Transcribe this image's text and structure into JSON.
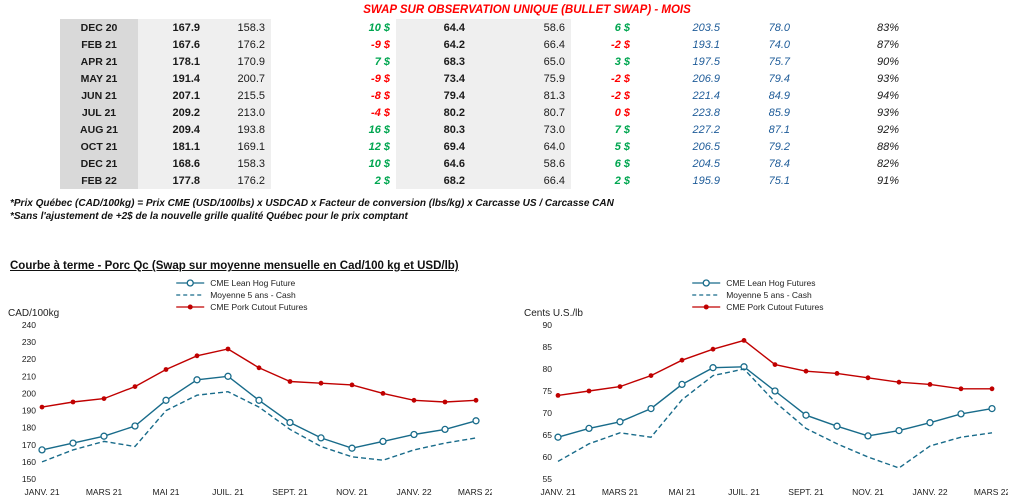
{
  "title": "SWAP SUR OBSERVATION UNIQUE (BULLET SWAP) - MOIS",
  "colors": {
    "title-red": "#ff0000",
    "diff-green": "#00a650",
    "diff-red": "#ff0000",
    "table-blue": "#1f5c99"
  },
  "table": {
    "rows": [
      {
        "month": "DEC 20",
        "cad": "167.9",
        "cad_ref": "158.3",
        "cad_diff": "10 $",
        "cad_diff_color": "green",
        "usd": "64.4",
        "usd_ref": "58.6",
        "usd_diff": "6 $",
        "usd_diff_color": "green",
        "cutout_cad": "203.5",
        "cutout_usd": "78.0",
        "ratio": "83%"
      },
      {
        "month": "FEB 21",
        "cad": "167.6",
        "cad_ref": "176.2",
        "cad_diff": "-9 $",
        "cad_diff_color": "red",
        "usd": "64.2",
        "usd_ref": "66.4",
        "usd_diff": "-2 $",
        "usd_diff_color": "red",
        "cutout_cad": "193.1",
        "cutout_usd": "74.0",
        "ratio": "87%"
      },
      {
        "month": "APR 21",
        "cad": "178.1",
        "cad_ref": "170.9",
        "cad_diff": "7 $",
        "cad_diff_color": "green",
        "usd": "68.3",
        "usd_ref": "65.0",
        "usd_diff": "3 $",
        "usd_diff_color": "green",
        "cutout_cad": "197.5",
        "cutout_usd": "75.7",
        "ratio": "90%"
      },
      {
        "month": "MAY 21",
        "cad": "191.4",
        "cad_ref": "200.7",
        "cad_diff": "-9 $",
        "cad_diff_color": "red",
        "usd": "73.4",
        "usd_ref": "75.9",
        "usd_diff": "-2 $",
        "usd_diff_color": "red",
        "cutout_cad": "206.9",
        "cutout_usd": "79.4",
        "ratio": "93%"
      },
      {
        "month": "JUN 21",
        "cad": "207.1",
        "cad_ref": "215.5",
        "cad_diff": "-8 $",
        "cad_diff_color": "red",
        "usd": "79.4",
        "usd_ref": "81.3",
        "usd_diff": "-2 $",
        "usd_diff_color": "red",
        "cutout_cad": "221.4",
        "cutout_usd": "84.9",
        "ratio": "94%"
      },
      {
        "month": "JUL 21",
        "cad": "209.2",
        "cad_ref": "213.0",
        "cad_diff": "-4 $",
        "cad_diff_color": "red",
        "usd": "80.2",
        "usd_ref": "80.7",
        "usd_diff": "0 $",
        "usd_diff_color": "red",
        "cutout_cad": "223.8",
        "cutout_usd": "85.9",
        "ratio": "93%"
      },
      {
        "month": "AUG 21",
        "cad": "209.4",
        "cad_ref": "193.8",
        "cad_diff": "16 $",
        "cad_diff_color": "green",
        "usd": "80.3",
        "usd_ref": "73.0",
        "usd_diff": "7 $",
        "usd_diff_color": "green",
        "cutout_cad": "227.2",
        "cutout_usd": "87.1",
        "ratio": "92%"
      },
      {
        "month": "OCT 21",
        "cad": "181.1",
        "cad_ref": "169.1",
        "cad_diff": "12 $",
        "cad_diff_color": "green",
        "usd": "69.4",
        "usd_ref": "64.0",
        "usd_diff": "5 $",
        "usd_diff_color": "green",
        "cutout_cad": "206.5",
        "cutout_usd": "79.2",
        "ratio": "88%"
      },
      {
        "month": "DEC 21",
        "cad": "168.6",
        "cad_ref": "158.3",
        "cad_diff": "10 $",
        "cad_diff_color": "green",
        "usd": "64.6",
        "usd_ref": "58.6",
        "usd_diff": "6 $",
        "usd_diff_color": "green",
        "cutout_cad": "204.5",
        "cutout_usd": "78.4",
        "ratio": "82%"
      },
      {
        "month": "FEB 22",
        "cad": "177.8",
        "cad_ref": "176.2",
        "cad_diff": "2 $",
        "cad_diff_color": "green",
        "usd": "68.2",
        "usd_ref": "66.4",
        "usd_diff": "2 $",
        "usd_diff_color": "green",
        "cutout_cad": "195.9",
        "cutout_usd": "75.1",
        "ratio": "91%"
      }
    ]
  },
  "footnotes": [
    "*Prix Québec (CAD/100kg) = Prix CME (USD/100lbs) x USDCAD x Facteur de conversion (lbs/kg) x Carcasse US / Carcasse CAN",
    "*Sans l'ajustement de +2$ de la nouvelle grille qualité Québec pour le prix comptant"
  ],
  "section_title": "Courbe à terme - Porc Qc (Swap sur moyenne mensuelle en Cad/100 kg et USD/lb)",
  "chart_data": [
    {
      "type": "line",
      "title": "",
      "ylabel": "CAD/100kg",
      "xlabel": "",
      "ylim": [
        150,
        240
      ],
      "ytick_step": 10,
      "grid": false,
      "legend_position": "top",
      "x_label_indices": [
        0,
        2,
        4,
        6,
        8,
        10,
        12,
        14
      ],
      "x_labels_shown": [
        "JANV. 21",
        "MARS 21",
        "MAI 21",
        "JUIL. 21",
        "SEPT. 21",
        "NOV. 21",
        "JANV. 22",
        "MARS 22"
      ],
      "series": [
        {
          "name": "CME Lean Hog Future",
          "color": "#186b8a",
          "line": "solid",
          "marker": "open-circle",
          "values": [
            167,
            171,
            175,
            181,
            196,
            208,
            210,
            196,
            183,
            174,
            168,
            172,
            176,
            179,
            184
          ]
        },
        {
          "name": "Moyenne 5 ans - Cash",
          "color": "#186b8a",
          "line": "dashed",
          "marker": "none",
          "values": [
            160,
            167,
            172,
            169,
            190,
            199,
            201,
            192,
            179,
            169,
            163,
            161,
            167,
            171,
            174
          ]
        },
        {
          "name": "CME Pork Cutout Futures",
          "color": "#c00000",
          "line": "solid",
          "marker": "filled-circle",
          "values": [
            192,
            195,
            197,
            204,
            214,
            222,
            226,
            215,
            207,
            206,
            205,
            200,
            196,
            195,
            196
          ]
        }
      ]
    },
    {
      "type": "line",
      "title": "",
      "ylabel": "Cents U.S./lb",
      "xlabel": "",
      "ylim": [
        55,
        90
      ],
      "ytick_step": 5,
      "grid": false,
      "legend_position": "top",
      "x_label_indices": [
        0,
        2,
        4,
        6,
        8,
        10,
        12,
        14
      ],
      "x_labels_shown": [
        "JANV. 21",
        "MARS 21",
        "MAI 21",
        "JUIL. 21",
        "SEPT. 21",
        "NOV. 21",
        "JANV. 22",
        "MARS 22"
      ],
      "series": [
        {
          "name": "CME Lean Hog Futures",
          "color": "#186b8a",
          "line": "solid",
          "marker": "open-circle",
          "values": [
            64.5,
            66.5,
            68,
            71,
            76.5,
            80.3,
            80.5,
            75,
            69.5,
            67,
            64.8,
            66,
            67.8,
            69.8,
            71
          ]
        },
        {
          "name": "Moyenne 5 ans - Cash",
          "color": "#186b8a",
          "line": "dashed",
          "marker": "none",
          "values": [
            59,
            63,
            65.5,
            64.5,
            73,
            78.5,
            80,
            72.5,
            66.5,
            63,
            60,
            57.5,
            62.5,
            64.5,
            65.5
          ]
        },
        {
          "name": "CME Pork Cutout Futures",
          "color": "#c00000",
          "line": "solid",
          "marker": "filled-circle",
          "values": [
            74,
            75,
            76,
            78.5,
            82,
            84.5,
            86.5,
            81,
            79.5,
            79,
            78,
            77,
            76.5,
            75.5,
            75.5
          ]
        }
      ]
    }
  ]
}
